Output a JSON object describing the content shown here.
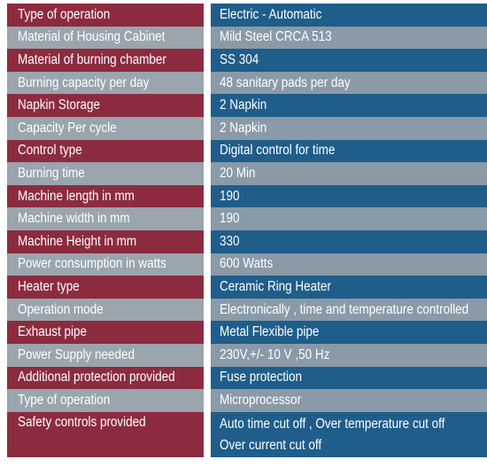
{
  "rows": [
    {
      "label": "Type of operation",
      "value": "Electric - Automatic"
    },
    {
      "label": "Material of Housing Cabinet",
      "value": "Mild Steel CRCA 513"
    },
    {
      "label": "Material of burning chamber",
      "value": "SS 304"
    },
    {
      "label": "Burning capacity per day",
      "value": "48 sanitary pads per day"
    },
    {
      "label": "Napkin Storage",
      "value": "2 Napkin"
    },
    {
      "label": "Capacity Per cycle",
      "value": "2 Napkin"
    },
    {
      "label": "Control type",
      "value": "Digital control for time"
    },
    {
      "label": "Burning time",
      "value": "20 Min"
    },
    {
      "label": "Machine length in mm",
      "value": "190"
    },
    {
      "label": "Machine width in mm",
      "value": "190"
    },
    {
      "label": "Machine Height in mm",
      "value": "330"
    },
    {
      "label": "Power consumption in watts",
      "value": "600 Watts"
    },
    {
      "label": "Heater type",
      "value": "Ceramic Ring Heater"
    },
    {
      "label": "Operation mode",
      "value": "Electronically , time and temperature controlled"
    },
    {
      "label": "Exhaust pipe",
      "value": "Metal Flexible pipe"
    },
    {
      "label": "Power Supply needed",
      "value": "230V,+/- 10 V ,50 Hz"
    },
    {
      "label": "Additional protection provided",
      "value": "Fuse protection"
    },
    {
      "label": "Type of operation",
      "value": "Microprocessor"
    },
    {
      "label": "Safety controls provided",
      "value": "Auto time cut off , Over temperature cut off",
      "value_line2": "Over current cut off"
    }
  ],
  "colors": {
    "label_dark": "#8c2b3f",
    "value_dark": "#1f5d8a",
    "label_light": "#9aa5ad",
    "value_light": "#8a9aa7"
  }
}
